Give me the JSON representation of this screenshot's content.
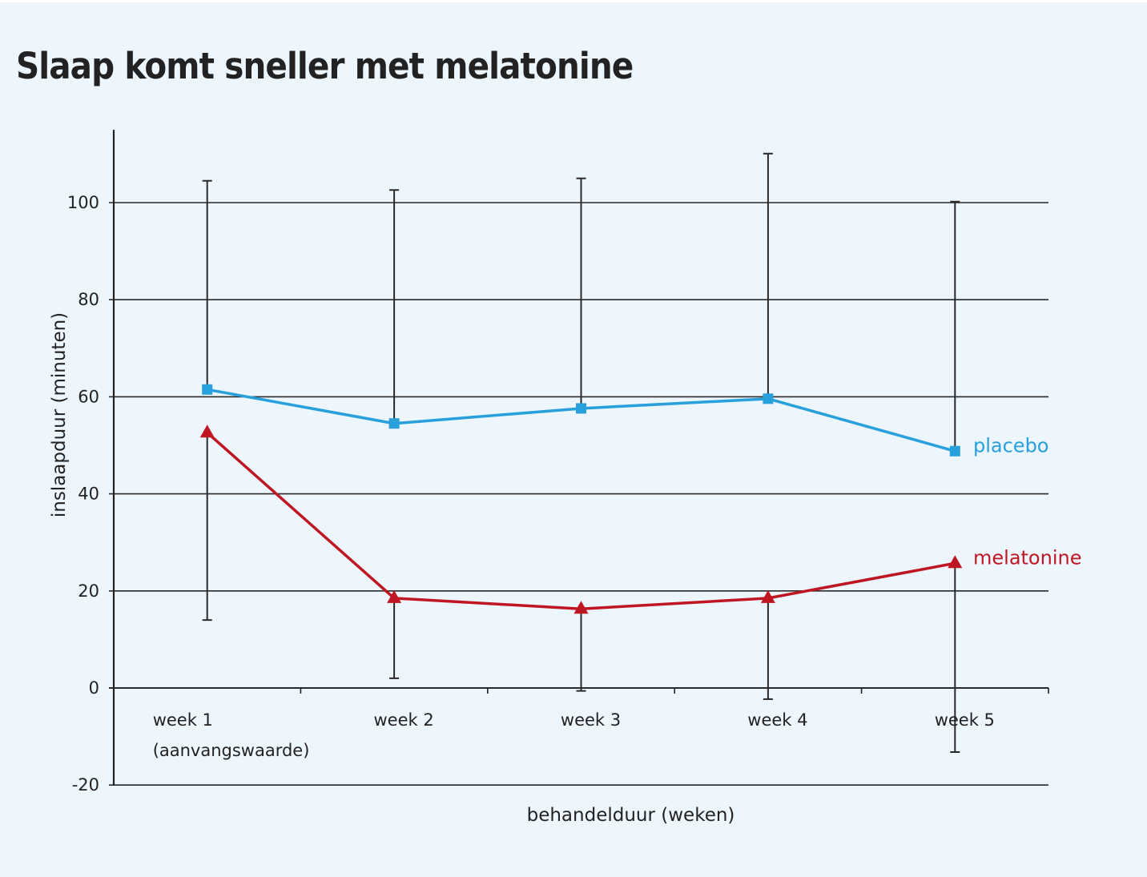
{
  "chart_data": {
    "type": "line",
    "title": "Slaap komt sneller met melatonine",
    "xlabel": "behandelduur (weken)",
    "ylabel": "inslaapduur (minuten)",
    "ylim": [
      -20,
      115
    ],
    "yticks": [
      -20,
      0,
      20,
      40,
      60,
      80,
      100
    ],
    "grid": true,
    "categories": [
      {
        "line1": "week 1",
        "line2": "(aanvangswaarde)"
      },
      {
        "line1": "week 2",
        "line2": ""
      },
      {
        "line1": "week 3",
        "line2": ""
      },
      {
        "line1": "week 4",
        "line2": ""
      },
      {
        "line1": "week 5",
        "line2": ""
      }
    ],
    "series": [
      {
        "name": "placebo",
        "color": "#28a0dc",
        "marker": "square",
        "values": [
          61.5,
          54.5,
          57.6,
          59.6,
          48.8
        ],
        "error_upper": [
          104.5,
          102.6,
          105.0,
          110.1,
          100.2
        ]
      },
      {
        "name": "melatonine",
        "color": "#be1622",
        "marker": "triangle",
        "values": [
          52.6,
          18.5,
          16.3,
          18.5,
          25.7
        ],
        "error_lower": [
          14.0,
          2.0,
          -0.6,
          -2.3,
          -13.2
        ]
      }
    ],
    "legend_placement": "right-end-of-lines"
  }
}
